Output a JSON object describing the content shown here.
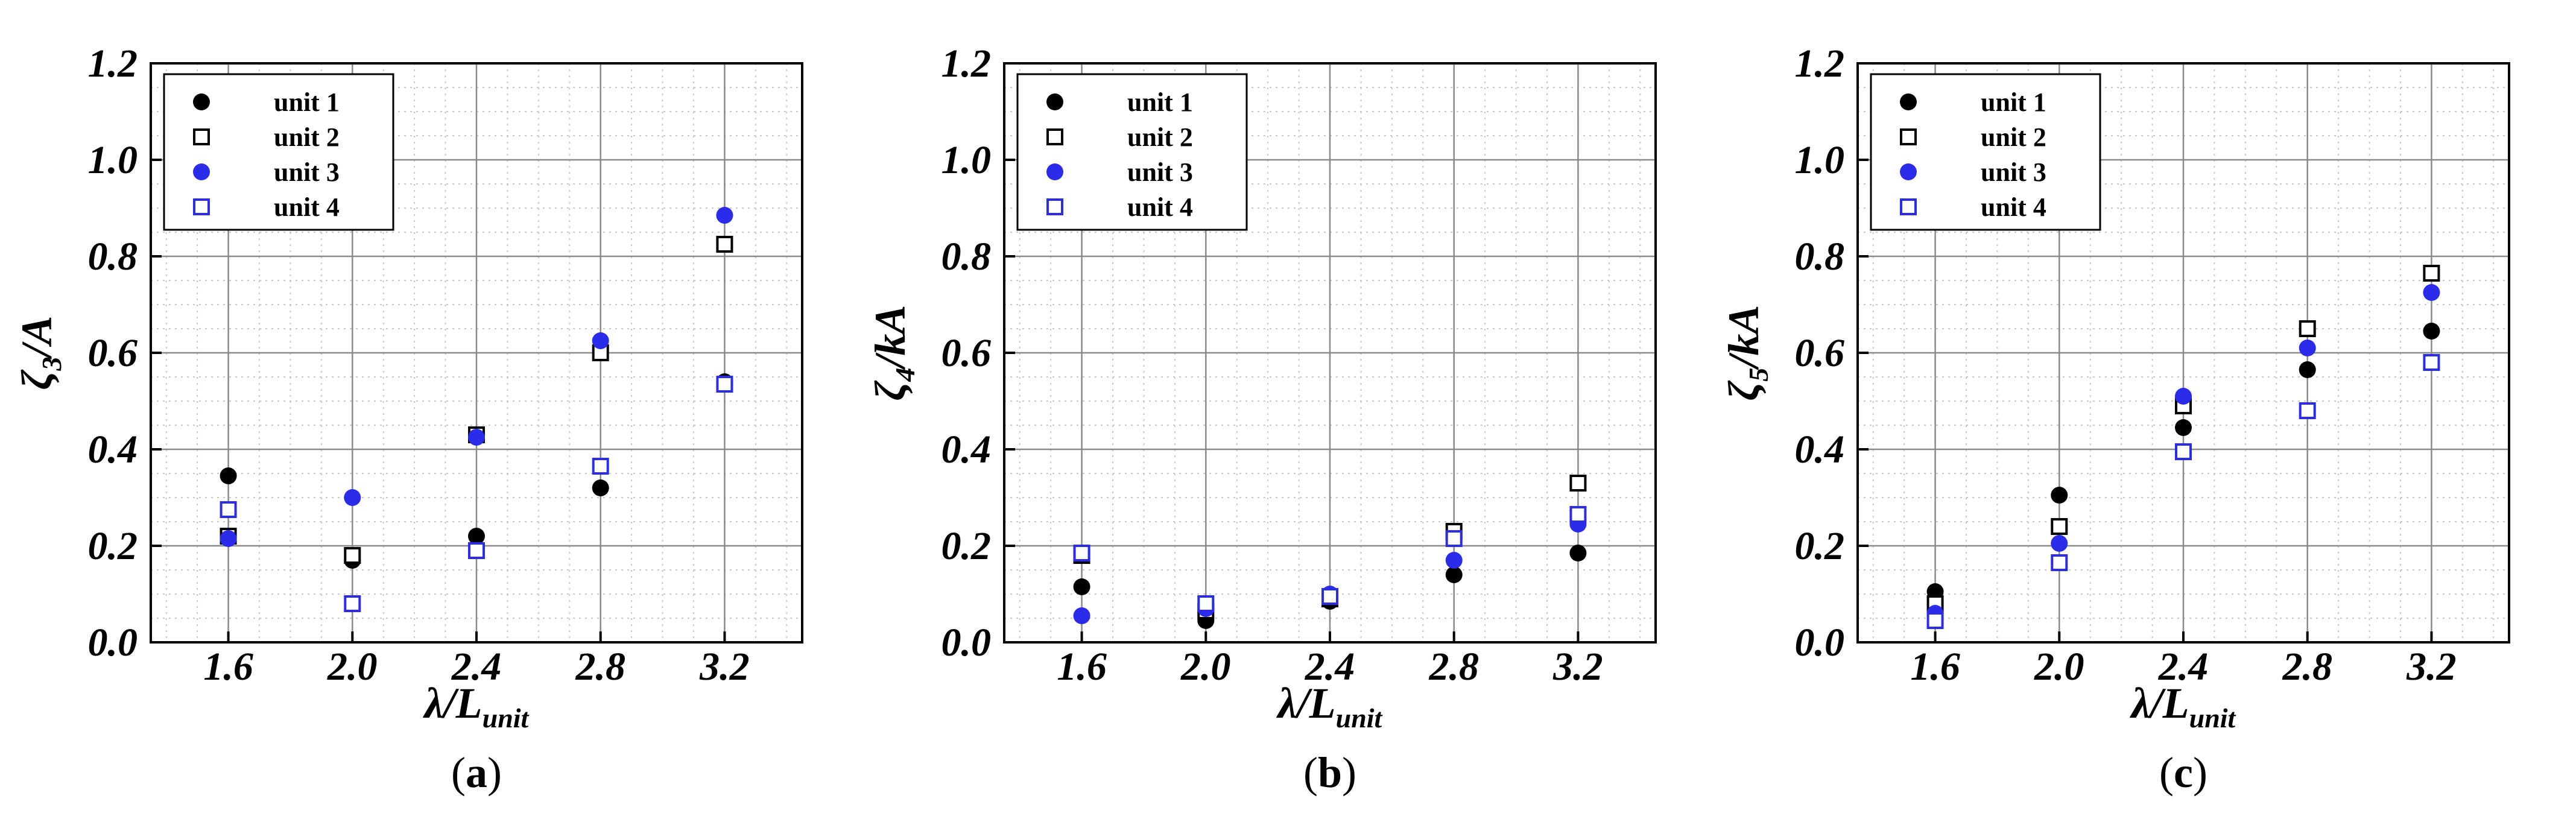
{
  "chart_data": [
    {
      "type": "scatter",
      "panel_label": "a",
      "ylabel_main": "ζ",
      "ylabel_sub": "3",
      "ylabel_tail": "/A",
      "xlabel_main": "λ/L",
      "xlabel_sub": "unit",
      "xlim": [
        1.35,
        3.45
      ],
      "ylim": [
        0.0,
        1.2
      ],
      "xticks": [
        "1.6",
        "2.0",
        "2.4",
        "2.8",
        "3.2"
      ],
      "xtick_values": [
        1.6,
        2.0,
        2.4,
        2.8,
        3.2
      ],
      "yticks": [
        "0.0",
        "0.2",
        "0.4",
        "0.6",
        "0.8",
        "1.0",
        "1.2"
      ],
      "ytick_values": [
        0.0,
        0.2,
        0.4,
        0.6,
        0.8,
        1.0,
        1.2
      ],
      "grid": true,
      "legend_position": "top-left",
      "x": [
        1.6,
        2.0,
        2.4,
        2.8,
        3.2
      ],
      "series": [
        {
          "name": "unit 1",
          "marker": "filled-circle",
          "color": "#000000",
          "values": [
            0.345,
            0.17,
            0.22,
            0.32,
            0.54
          ]
        },
        {
          "name": "unit 2",
          "marker": "open-square",
          "color": "#000000",
          "values": [
            0.22,
            0.18,
            0.43,
            0.6,
            0.825
          ]
        },
        {
          "name": "unit 3",
          "marker": "filled-circle",
          "color": "#2b2bea",
          "values": [
            0.215,
            0.3,
            0.425,
            0.625,
            0.885
          ]
        },
        {
          "name": "unit 4",
          "marker": "open-square",
          "color": "#2b2bea",
          "values": [
            0.275,
            0.08,
            0.19,
            0.365,
            0.535
          ]
        }
      ]
    },
    {
      "type": "scatter",
      "panel_label": "b",
      "ylabel_main": "ζ",
      "ylabel_sub": "4",
      "ylabel_tail": "/kA",
      "xlabel_main": "λ/L",
      "xlabel_sub": "unit",
      "xlim": [
        1.35,
        3.45
      ],
      "ylim": [
        0.0,
        1.2
      ],
      "xticks": [
        "1.6",
        "2.0",
        "2.4",
        "2.8",
        "3.2"
      ],
      "xtick_values": [
        1.6,
        2.0,
        2.4,
        2.8,
        3.2
      ],
      "yticks": [
        "0.0",
        "0.2",
        "0.4",
        "0.6",
        "0.8",
        "1.0",
        "1.2"
      ],
      "ytick_values": [
        0.0,
        0.2,
        0.4,
        0.6,
        0.8,
        1.0,
        1.2
      ],
      "grid": true,
      "legend_position": "top-left",
      "x": [
        1.6,
        2.0,
        2.4,
        2.8,
        3.2
      ],
      "series": [
        {
          "name": "unit 1",
          "marker": "filled-circle",
          "color": "#000000",
          "values": [
            0.115,
            0.045,
            0.085,
            0.14,
            0.185
          ]
        },
        {
          "name": "unit 2",
          "marker": "open-square",
          "color": "#000000",
          "values": [
            0.18,
            0.065,
            0.09,
            0.23,
            0.33
          ]
        },
        {
          "name": "unit 3",
          "marker": "filled-circle",
          "color": "#2b2bea",
          "values": [
            0.055,
            0.07,
            0.1,
            0.17,
            0.245
          ]
        },
        {
          "name": "unit 4",
          "marker": "open-square",
          "color": "#2b2bea",
          "values": [
            0.185,
            0.08,
            0.095,
            0.215,
            0.265
          ]
        }
      ]
    },
    {
      "type": "scatter",
      "panel_label": "c",
      "ylabel_main": "ζ",
      "ylabel_sub": "5",
      "ylabel_tail": "/kA",
      "xlabel_main": "λ/L",
      "xlabel_sub": "unit",
      "xlim": [
        1.35,
        3.45
      ],
      "ylim": [
        0.0,
        1.2
      ],
      "xticks": [
        "1.6",
        "2.0",
        "2.4",
        "2.8",
        "3.2"
      ],
      "xtick_values": [
        1.6,
        2.0,
        2.4,
        2.8,
        3.2
      ],
      "yticks": [
        "0.0",
        "0.2",
        "0.4",
        "0.6",
        "0.8",
        "1.0",
        "1.2"
      ],
      "ytick_values": [
        0.0,
        0.2,
        0.4,
        0.6,
        0.8,
        1.0,
        1.2
      ],
      "grid": true,
      "legend_position": "top-left",
      "x": [
        1.6,
        2.0,
        2.4,
        2.8,
        3.2
      ],
      "series": [
        {
          "name": "unit 1",
          "marker": "filled-circle",
          "color": "#000000",
          "values": [
            0.105,
            0.305,
            0.445,
            0.565,
            0.645
          ]
        },
        {
          "name": "unit 2",
          "marker": "open-square",
          "color": "#000000",
          "values": [
            0.08,
            0.24,
            0.49,
            0.65,
            0.765
          ]
        },
        {
          "name": "unit 3",
          "marker": "filled-circle",
          "color": "#2b2bea",
          "values": [
            0.06,
            0.205,
            0.51,
            0.61,
            0.725
          ]
        },
        {
          "name": "unit 4",
          "marker": "open-square",
          "color": "#2b2bea",
          "values": [
            0.045,
            0.165,
            0.395,
            0.48,
            0.58
          ]
        }
      ]
    }
  ],
  "captions": [
    {
      "open": "(",
      "letter": "a",
      "close": ")"
    },
    {
      "open": "(",
      "letter": "b",
      "close": ")"
    },
    {
      "open": "(",
      "letter": "c",
      "close": ")"
    }
  ]
}
